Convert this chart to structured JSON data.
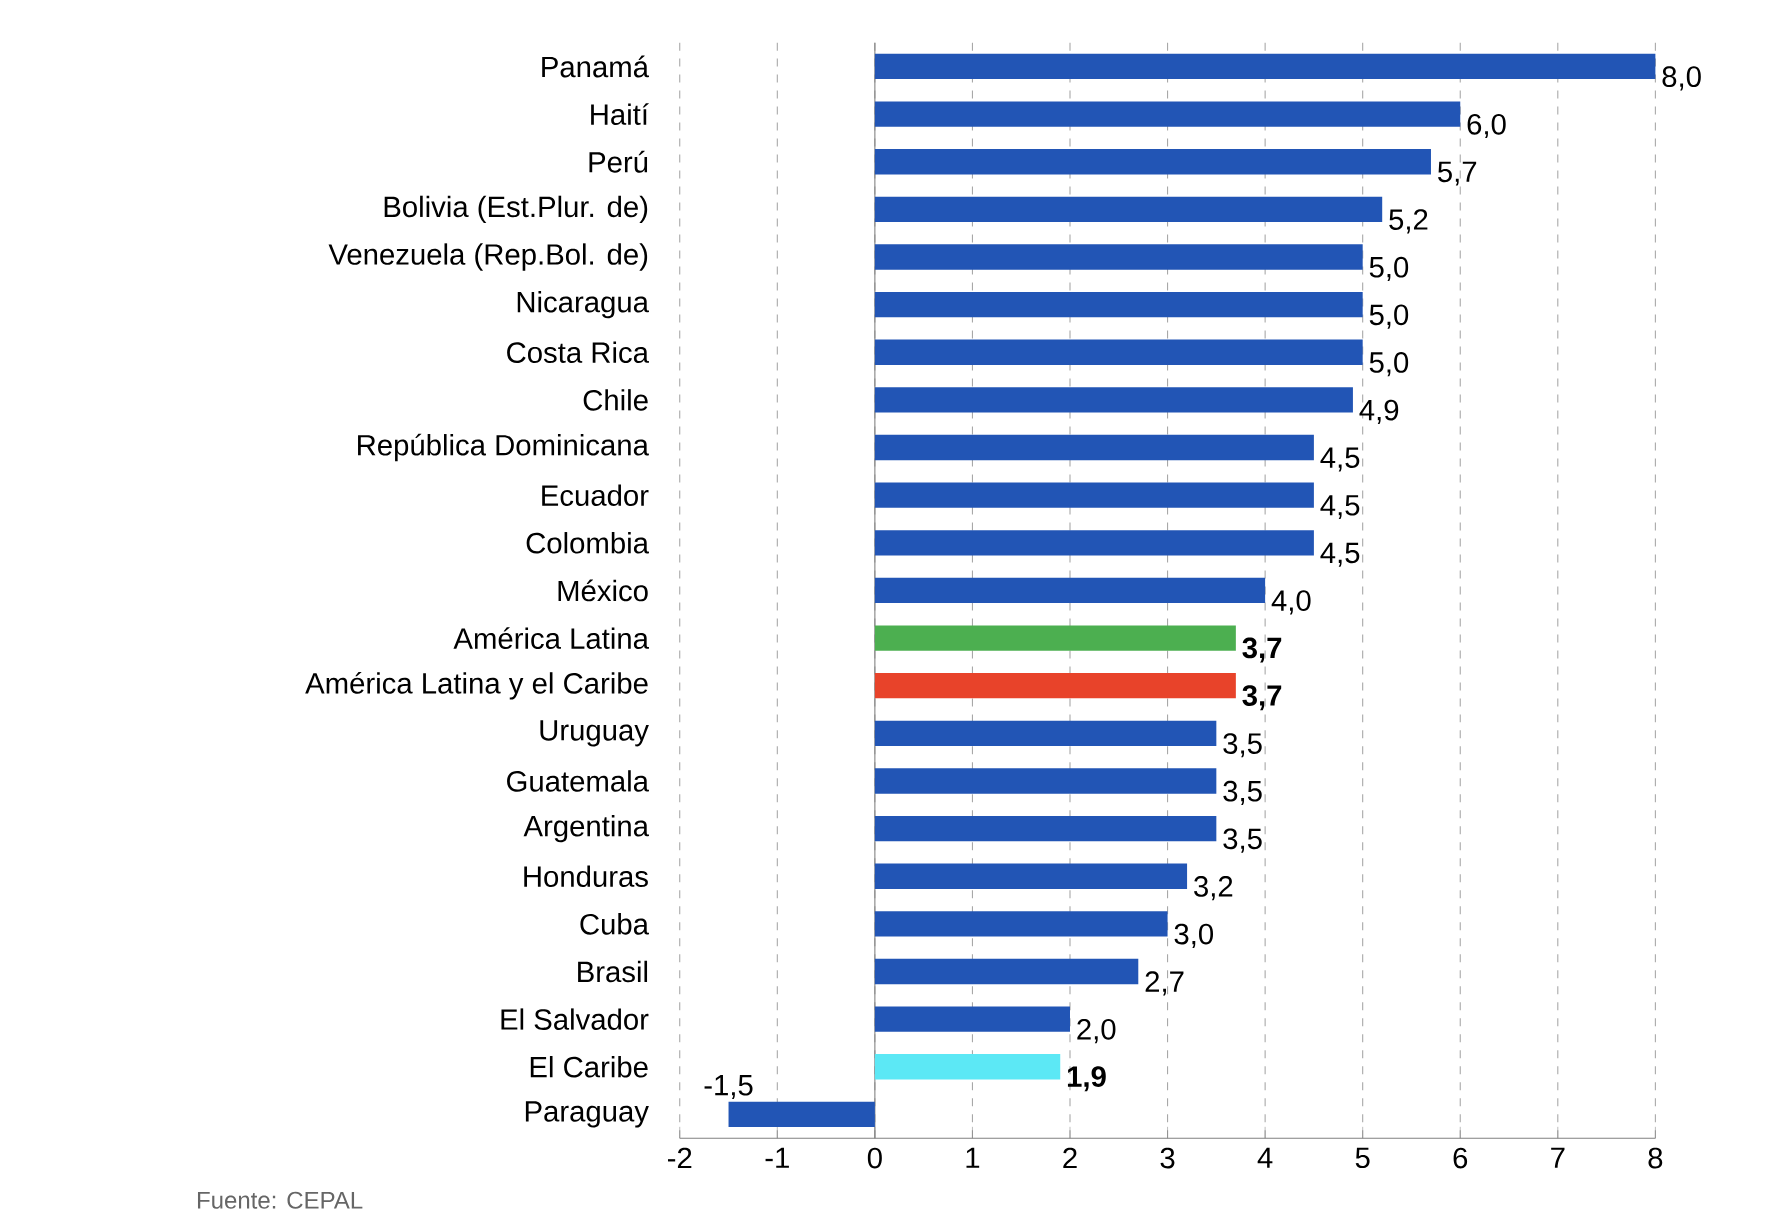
{
  "chart_data": {
    "type": "bar",
    "orientation": "horizontal",
    "categories": [
      "Panamá",
      "Haití",
      "Perú",
      "Bolivia (Est.Plur. de)",
      "Venezuela (Rep.Bol. de)",
      "Nicaragua",
      "Costa Rica",
      "Chile",
      "República Dominicana",
      "Ecuador",
      "Colombia",
      "México",
      "América Latina",
      "América Latina y el Caribe",
      "Uruguay",
      "Guatemala",
      "Argentina",
      "Honduras",
      "Cuba",
      "Brasil",
      "El Salvador",
      "El Caribe",
      "Paraguay"
    ],
    "values": [
      8.0,
      6.0,
      5.7,
      5.2,
      5.0,
      5.0,
      5.0,
      4.9,
      4.5,
      4.5,
      4.5,
      4.0,
      3.7,
      3.7,
      3.5,
      3.5,
      3.5,
      3.2,
      3.0,
      2.7,
      2.0,
      1.9,
      -1.5
    ],
    "value_labels": [
      "8,0",
      "6,0",
      "5,7",
      "5,2",
      "5,0",
      "5,0",
      "5,0",
      "4,9",
      "4,5",
      "4,5",
      "4,5",
      "4,0",
      "**3,7**",
      "**3,7**",
      "3,5",
      "3,5",
      "3,5",
      "3,2",
      "3,0",
      "2,7",
      "2,0",
      "**1,9**",
      "-1,5"
    ],
    "colors": [
      "#2255b5",
      "#2255b5",
      "#2255b5",
      "#2255b5",
      "#2255b5",
      "#2255b5",
      "#2255b5",
      "#2255b5",
      "#2255b5",
      "#2255b5",
      "#2255b5",
      "#2255b5",
      "#4caf50",
      "#e8432a",
      "#2255b5",
      "#2255b5",
      "#2255b5",
      "#2255b5",
      "#2255b5",
      "#2255b5",
      "#2255b5",
      "#5ce8f5",
      "#2255b5"
    ],
    "xlim": [
      -2,
      8
    ],
    "xticks": [
      -2,
      -1,
      0,
      1,
      2,
      3,
      4,
      5,
      6,
      7,
      8
    ],
    "grid": "x",
    "annotations": [
      "Fuente: CEPAL"
    ]
  }
}
